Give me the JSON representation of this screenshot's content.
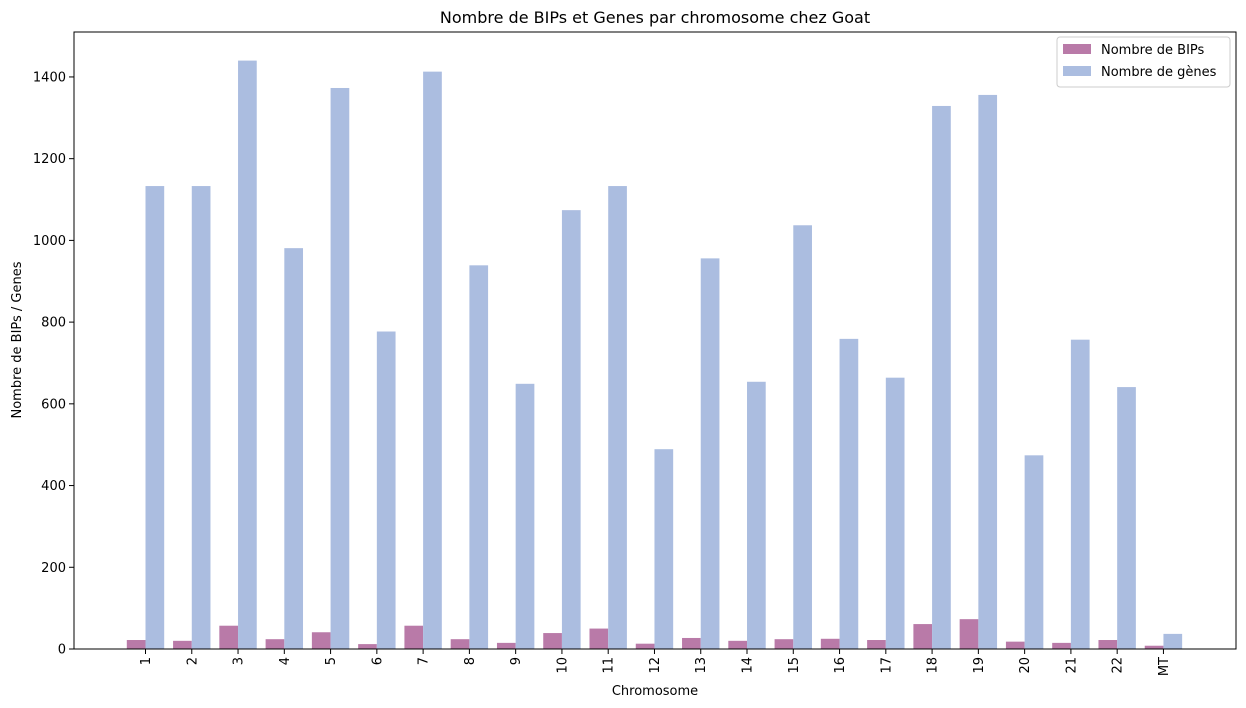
{
  "chart_data": {
    "type": "bar",
    "title": "Nombre de BIPs et Genes par chromosome chez Goat",
    "xlabel": "Chromosome",
    "ylabel": "Nombre de BIPs / Genes",
    "ylim": [
      0,
      1510
    ],
    "yticks": [
      0,
      200,
      400,
      600,
      800,
      1000,
      1200,
      1400
    ],
    "categories": [
      "1",
      "2",
      "3",
      "4",
      "5",
      "6",
      "7",
      "8",
      "9",
      "10",
      "11",
      "12",
      "13",
      "14",
      "15",
      "16",
      "17",
      "18",
      "19",
      "20",
      "21",
      "22",
      "MT"
    ],
    "series": [
      {
        "name": "Nombre de BIPs",
        "color": "#b97aa8",
        "values": [
          22,
          20,
          57,
          24,
          41,
          12,
          57,
          24,
          15,
          39,
          50,
          13,
          27,
          20,
          24,
          25,
          22,
          61,
          73,
          18,
          15,
          22,
          8
        ]
      },
      {
        "name": "Nombre de gènes",
        "color": "#abbde0",
        "values": [
          1133,
          1133,
          1440,
          981,
          1373,
          777,
          1413,
          939,
          649,
          1074,
          1133,
          489,
          956,
          654,
          1037,
          759,
          664,
          1329,
          1356,
          474,
          757,
          641,
          37
        ]
      }
    ],
    "legend": "top-right",
    "grid": false
  }
}
